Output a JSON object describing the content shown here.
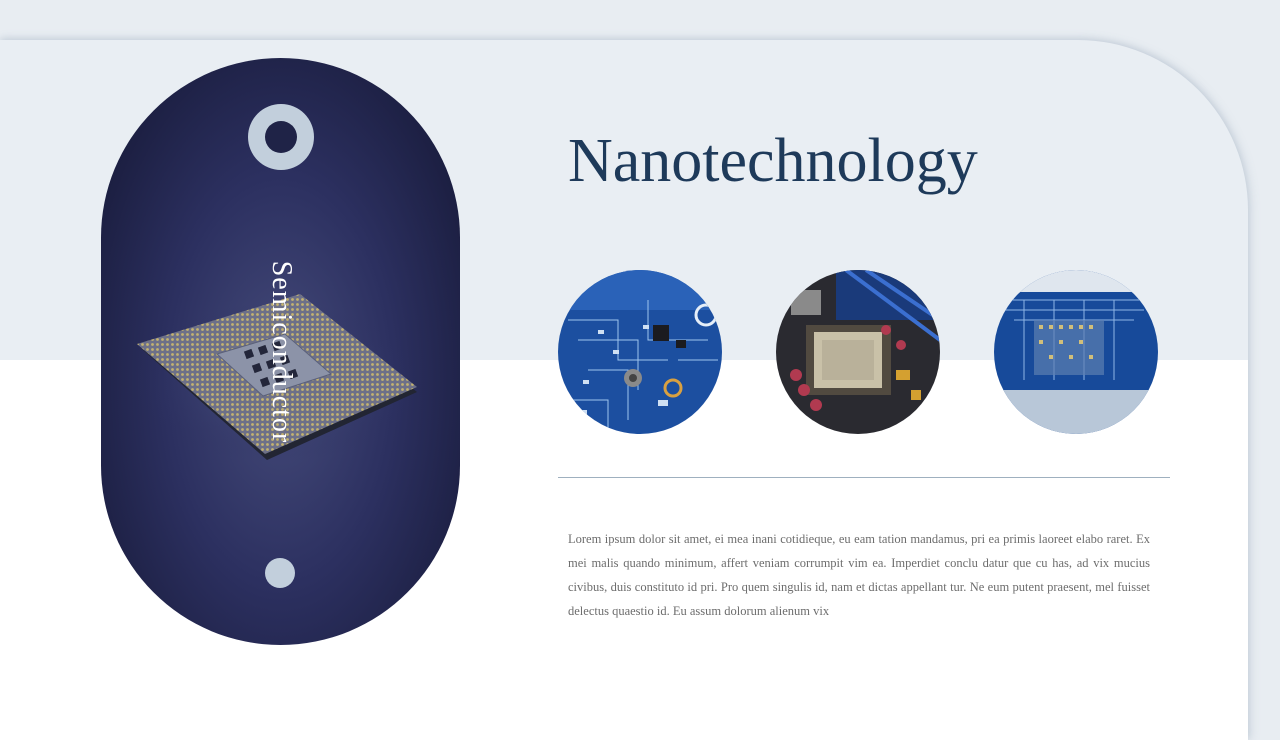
{
  "slide": {
    "title": "Nanotechnology",
    "vertical_label": "Semiconductor",
    "body": "Lorem ipsum dolor sit amet, ei mea inani cotidieque, eu eam tation mandamus, pri ea primis laoreet elabo raret. Ex mei malis quando minimum, affert veniam corrumpit vim ea. Imperdiet conclu datur que cu has, ad vix mucius civibus, duis constituto id pri. Pro quem singulis id, nam et dictas appellant tur. Ne eum putent praesent, mel fuisset delectus quaestio id. Eu assum dolorum alienum vix"
  },
  "images": [
    {
      "name": "circuit-board-photo-1"
    },
    {
      "name": "cpu-socket-photo"
    },
    {
      "name": "circuit-board-photo-2"
    }
  ],
  "colors": {
    "background": "#e8edf2",
    "title": "#1e3a5a",
    "capsule": "#1f2347",
    "accent": "#c2cfdc",
    "text": "#6d6d6d"
  }
}
